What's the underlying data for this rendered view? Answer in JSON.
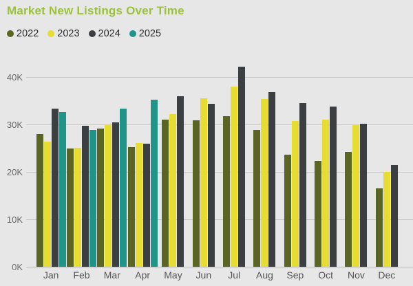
{
  "title": "Market New Listings Over Time",
  "colors": {
    "title": "#9CC13C",
    "background": "#E7E7E7",
    "gridline": "#C6C6C6",
    "axis_text": "#6A6A6A",
    "x_axis_text": "#545454",
    "legend_text": "#2B2B2B",
    "series_2022": "#5B6523",
    "series_2023": "#E7DC32",
    "series_2024": "#3B3F42",
    "series_2025": "#1F9489"
  },
  "chart_data": {
    "type": "bar",
    "title": "Market New Listings Over Time",
    "xlabel": "",
    "ylabel": "",
    "unit": "K",
    "grid": true,
    "legend_position": "top-left",
    "ylim": [
      0,
      43.5
    ],
    "y_ticks": [
      {
        "value": 0,
        "label": "0K"
      },
      {
        "value": 10,
        "label": "10K"
      },
      {
        "value": 20,
        "label": "20K"
      },
      {
        "value": 30,
        "label": "30K"
      },
      {
        "value": 40,
        "label": "40K"
      }
    ],
    "categories": [
      "Jan",
      "Feb",
      "Mar",
      "Apr",
      "May",
      "Jun",
      "Jul",
      "Aug",
      "Sep",
      "Oct",
      "Nov",
      "Dec"
    ],
    "series": [
      {
        "name": "2022",
        "color": "#5B6523",
        "values": [
          28.0,
          24.9,
          29.1,
          25.2,
          31.0,
          30.9,
          31.7,
          28.9,
          23.6,
          22.4,
          24.2,
          16.5
        ]
      },
      {
        "name": "2023",
        "color": "#E7DC32",
        "values": [
          26.4,
          25.1,
          30.0,
          26.1,
          32.2,
          35.6,
          38.0,
          35.4,
          30.8,
          31.0,
          30.0,
          20.0
        ]
      },
      {
        "name": "2024",
        "color": "#3B3F42",
        "values": [
          33.3,
          29.8,
          30.4,
          25.9,
          36.0,
          34.4,
          42.2,
          36.8,
          34.5,
          33.8,
          30.1,
          21.5
        ]
      },
      {
        "name": "2025",
        "color": "#1F9489",
        "values": [
          32.7,
          28.9,
          33.4,
          35.3,
          null,
          null,
          null,
          null,
          null,
          null,
          null,
          null
        ]
      }
    ]
  }
}
